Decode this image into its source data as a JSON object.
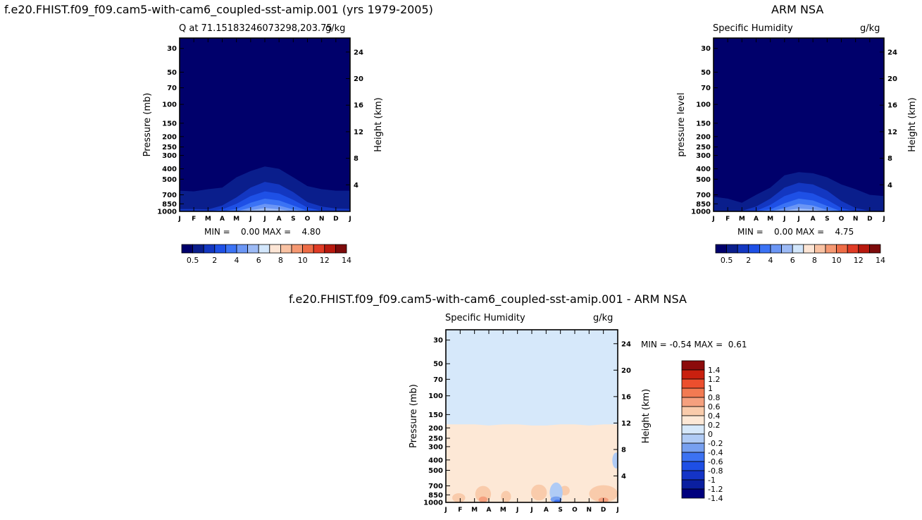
{
  "figure": {
    "left_title": "f.e20.FHIST.f09_f09.cam5-with-cam6_coupled-sst-amip.001 (yrs 1979-2005)",
    "right_title": "ARM NSA",
    "diff_title": "f.e20.FHIST.f09_f09.cam5-with-cam6_coupled-sst-amip.001 - ARM NSA"
  },
  "colors": {
    "model_levels": [
      "#00006b",
      "#0a1e8c",
      "#1337c1",
      "#1e50e6",
      "#3b73f5",
      "#6b96f5",
      "#9cbaf5",
      "#d2e6fb",
      "#fce5d5",
      "#f9c2a3",
      "#f59872",
      "#ee6c46",
      "#e03b25",
      "#b8190e",
      "#7d0b0b"
    ],
    "diff_levels": [
      "#00007e",
      "#0b1fa0",
      "#1434c7",
      "#1e4fe5",
      "#3c72f2",
      "#77a0f0",
      "#b0cbf5",
      "#d6e8fa",
      "#fde8d6",
      "#f9cbab",
      "#f5a07e",
      "#f27a52",
      "#ec4f2e",
      "#c9200f",
      "#8c0b0b"
    ]
  },
  "chart_data": [
    {
      "id": "model",
      "type": "contour",
      "subtitle_left": "Q at 71.15183246073298,203.75",
      "subtitle_right": "g/kg",
      "ylabel": "Pressure (mb)",
      "ylabel_right": "Height (km)",
      "months": [
        "J",
        "F",
        "M",
        "A",
        "M",
        "J",
        "J",
        "A",
        "S",
        "O",
        "N",
        "D",
        "J"
      ],
      "pressure_ticks": [
        "30",
        "50",
        "70",
        "100",
        "150",
        "200",
        "250",
        "300",
        "400",
        "500",
        "700",
        "850",
        "1000"
      ],
      "pressure_values": [
        30,
        50,
        70,
        100,
        150,
        200,
        250,
        300,
        400,
        500,
        700,
        850,
        1000
      ],
      "height_ticks": [
        "24",
        "20",
        "16",
        "12",
        "8",
        "4"
      ],
      "height_values": [
        24,
        20,
        16,
        12,
        8,
        4
      ],
      "ylim": [
        1000,
        24
      ],
      "min_label": "MIN =",
      "min_value": "0.00",
      "max_label": "MAX =",
      "max_value": "4.80",
      "colorbar_labels": [
        "0.5",
        "2",
        "4",
        "6",
        "8",
        "10",
        "12",
        "14"
      ],
      "colorbar_label_boxes": [
        1,
        3,
        5,
        7,
        9,
        11,
        13,
        15
      ],
      "contours": [
        {
          "level": 1,
          "p": [
            640,
            650,
            620,
            600,
            480,
            420,
            380,
            400,
            480,
            580,
            620,
            640,
            640
          ]
        },
        {
          "level": 2,
          "p": [
            950,
            950,
            960,
            880,
            740,
            600,
            530,
            560,
            660,
            820,
            900,
            940,
            950
          ]
        },
        {
          "level": 3,
          "p": [
            1000,
            1000,
            1000,
            960,
            850,
            720,
            650,
            680,
            780,
            920,
            990,
            1000,
            1000
          ]
        },
        {
          "level": 4,
          "p": [
            1000,
            1000,
            1000,
            1000,
            950,
            830,
            760,
            790,
            880,
            990,
            1000,
            1000,
            1000
          ]
        },
        {
          "level": 5,
          "p": [
            1000,
            1000,
            1000,
            1000,
            1000,
            920,
            850,
            880,
            960,
            1000,
            1000,
            1000,
            1000
          ]
        },
        {
          "level": 6,
          "p": [
            1000,
            1000,
            1000,
            1000,
            1000,
            975,
            930,
            955,
            1000,
            1000,
            1000,
            1000,
            1000
          ]
        }
      ]
    },
    {
      "id": "obs",
      "type": "contour",
      "subtitle_left": "Specific Humidity",
      "subtitle_right": "g/kg",
      "ylabel": "pressure level",
      "ylabel_right": "Height (km)",
      "months": [
        "J",
        "F",
        "M",
        "A",
        "M",
        "J",
        "J",
        "A",
        "S",
        "O",
        "N",
        "D",
        "J"
      ],
      "pressure_ticks": [
        "30",
        "50",
        "70",
        "100",
        "150",
        "200",
        "250",
        "300",
        "400",
        "500",
        "700",
        "850",
        "1000"
      ],
      "pressure_values": [
        30,
        50,
        70,
        100,
        150,
        200,
        250,
        300,
        400,
        500,
        700,
        850,
        1000
      ],
      "height_ticks": [
        "24",
        "20",
        "16",
        "12",
        "8",
        "4"
      ],
      "height_values": [
        24,
        20,
        16,
        12,
        8,
        4
      ],
      "ylim": [
        1000,
        24
      ],
      "min_label": "MIN =",
      "min_value": "0.00",
      "max_label": "MAX =",
      "max_value": "4.75",
      "colorbar_labels": [
        "0.5",
        "2",
        "4",
        "6",
        "8",
        "10",
        "12",
        "14"
      ],
      "colorbar_label_boxes": [
        1,
        3,
        5,
        7,
        9,
        11,
        13,
        15
      ],
      "contours": [
        {
          "level": 1,
          "p": [
            730,
            760,
            830,
            700,
            600,
            460,
            430,
            440,
            480,
            560,
            620,
            700,
            720
          ]
        },
        {
          "level": 2,
          "p": [
            1000,
            1000,
            990,
            900,
            760,
            600,
            540,
            560,
            640,
            800,
            930,
            990,
            1000
          ]
        },
        {
          "level": 3,
          "p": [
            1000,
            1000,
            1000,
            990,
            870,
            720,
            650,
            680,
            780,
            930,
            1000,
            1000,
            1000
          ]
        },
        {
          "level": 4,
          "p": [
            1000,
            1000,
            1000,
            1000,
            960,
            840,
            760,
            790,
            890,
            1000,
            1000,
            1000,
            1000
          ]
        },
        {
          "level": 5,
          "p": [
            1000,
            1000,
            1000,
            1000,
            1000,
            930,
            850,
            880,
            970,
            1000,
            1000,
            1000,
            1000
          ]
        },
        {
          "level": 6,
          "p": [
            1000,
            1000,
            1000,
            1000,
            1000,
            985,
            940,
            960,
            1000,
            1000,
            1000,
            1000,
            1000
          ]
        }
      ]
    },
    {
      "id": "diff",
      "type": "contour",
      "subtitle_left": "Specific Humidity",
      "subtitle_right": "g/kg",
      "ylabel": "Pressure (mb)",
      "ylabel_right": "Height (km)",
      "months": [
        "J",
        "F",
        "M",
        "A",
        "M",
        "J",
        "J",
        "A",
        "S",
        "O",
        "N",
        "D",
        "J"
      ],
      "pressure_ticks": [
        "30",
        "50",
        "70",
        "100",
        "150",
        "200",
        "250",
        "300",
        "400",
        "500",
        "700",
        "850",
        "1000"
      ],
      "pressure_values": [
        30,
        50,
        70,
        100,
        150,
        200,
        250,
        300,
        400,
        500,
        700,
        850,
        1000
      ],
      "height_ticks": [
        "24",
        "20",
        "16",
        "12",
        "8",
        "4"
      ],
      "height_values": [
        24,
        20,
        16,
        12,
        8,
        4
      ],
      "ylim": [
        1000,
        24
      ],
      "min_label": "MIN =",
      "min_value": "-0.54",
      "max_label": "MAX =",
      "max_value": "0.61",
      "colorbar_labels": [
        "1.4",
        "1.2",
        "1",
        "0.8",
        "0.6",
        "0.4",
        "0.2",
        "0",
        "-0.2",
        "-0.4",
        "-0.6",
        "-0.8",
        "-1",
        "-1.2",
        "-1.4"
      ],
      "upper_region": {
        "level": 7,
        "below_p": [
          185,
          185,
          185,
          190,
          185,
          185,
          190,
          190,
          185,
          185,
          190,
          185,
          185
        ]
      },
      "lower_region": {
        "level": 8
      },
      "blobs": [
        {
          "level": 9,
          "month": 2.6,
          "p_top": 700,
          "p_bottom": 1000,
          "half_width": 0.55
        },
        {
          "level": 9,
          "month": 0.9,
          "p_top": 820,
          "p_bottom": 1000,
          "half_width": 0.45
        },
        {
          "level": 9,
          "month": 4.2,
          "p_top": 780,
          "p_bottom": 1000,
          "half_width": 0.35
        },
        {
          "level": 9,
          "month": 6.5,
          "p_top": 680,
          "p_bottom": 960,
          "half_width": 0.55
        },
        {
          "level": 9,
          "month": 8.3,
          "p_top": 700,
          "p_bottom": 860,
          "half_width": 0.35
        },
        {
          "level": 9,
          "month": 11.0,
          "p_top": 690,
          "p_bottom": 1000,
          "half_width": 1.0
        },
        {
          "level": 10,
          "month": 2.6,
          "p_top": 880,
          "p_bottom": 1000,
          "half_width": 0.3
        },
        {
          "level": 10,
          "month": 11.0,
          "p_top": 900,
          "p_bottom": 1000,
          "half_width": 0.35
        },
        {
          "level": 6,
          "month": 7.7,
          "p_top": 650,
          "p_bottom": 1000,
          "half_width": 0.45
        },
        {
          "level": 6,
          "month": 11.9,
          "p_top": 340,
          "p_bottom": 480,
          "half_width": 0.28
        },
        {
          "level": 5,
          "month": 7.7,
          "p_top": 880,
          "p_bottom": 1000,
          "half_width": 0.4
        },
        {
          "level": 4,
          "month": 7.8,
          "p_top": 950,
          "p_bottom": 1000,
          "half_width": 0.25
        }
      ]
    }
  ]
}
